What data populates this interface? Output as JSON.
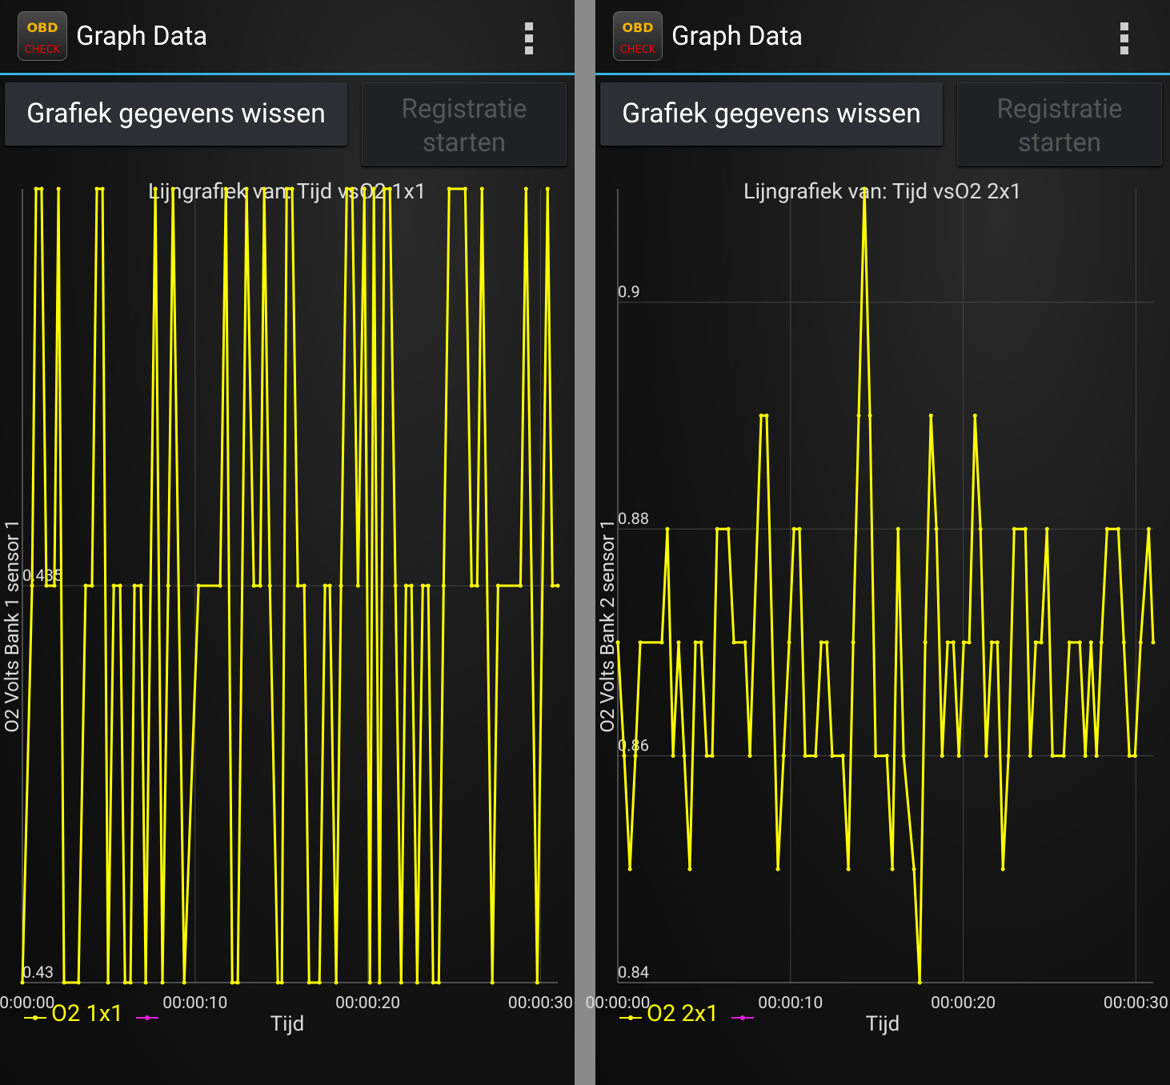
{
  "screens": [
    {
      "icon_top": "OBD",
      "icon_bottom": "CHECK",
      "title": "Graph Data",
      "buttons": [
        "Grafiek gegevens wissen",
        "Registratie starten"
      ]
    },
    {
      "icon_top": "OBD",
      "icon_bottom": "CHECK",
      "title": "Graph Data",
      "buttons": [
        "Grafiek gegevens wissen",
        "Registratie starten"
      ]
    }
  ],
  "chart_data": [
    {
      "type": "line",
      "title": "Lijngrafiek van: Tijd vsO2 1x1",
      "x_label": "Tijd",
      "y_label": "O2 Volts Bank 1 sensor 1",
      "x": [
        0,
        0.56,
        0.79,
        1.11,
        1.39,
        1.85,
        2.09,
        2.41,
        3.25,
        3.66,
        4.03,
        4.31,
        4.64,
        4.96,
        5.29,
        5.66,
        5.94,
        6.26,
        6.49,
        6.86,
        7.14,
        7.7,
        8.11,
        8.44,
        8.72,
        9.37,
        10.2,
        11.45,
        11.78,
        12.15,
        12.47,
        12.98,
        13.4,
        13.77,
        14.0,
        14.33,
        14.79,
        15.02,
        15.3,
        15.62,
        15.95,
        16.32,
        16.6,
        17.2,
        17.52,
        17.8,
        18.17,
        18.45,
        18.78,
        19.1,
        19.43,
        19.8,
        20.12,
        20.35,
        20.68,
        20.95,
        21.28,
        21.6,
        21.93,
        22.21,
        22.53,
        22.86,
        23.18,
        23.5,
        23.78,
        24.11,
        24.39,
        24.71,
        25.64,
        26.01,
        26.33,
        26.61,
        27.21,
        27.54,
        28.84,
        29.16,
        29.81,
        30.41,
        30.69,
        31.0
      ],
      "series": [
        {
          "name": "O2 1x1",
          "color": "#ffff00",
          "values": [
            0.43,
            0.435,
            0.44,
            0.44,
            0.435,
            0.435,
            0.44,
            0.43,
            0.43,
            0.435,
            0.435,
            0.44,
            0.44,
            0.43,
            0.435,
            0.435,
            0.43,
            0.43,
            0.435,
            0.435,
            0.43,
            0.44,
            0.43,
            0.435,
            0.44,
            0.43,
            0.435,
            0.435,
            0.44,
            0.43,
            0.43,
            0.44,
            0.435,
            0.435,
            0.44,
            0.435,
            0.43,
            0.43,
            0.44,
            0.44,
            0.435,
            0.435,
            0.43,
            0.43,
            0.435,
            0.435,
            0.43,
            0.435,
            0.44,
            0.44,
            0.435,
            0.44,
            0.43,
            0.44,
            0.43,
            0.44,
            0.44,
            0.435,
            0.43,
            0.435,
            0.435,
            0.43,
            0.435,
            0.435,
            0.43,
            0.43,
            0.435,
            0.44,
            0.44,
            0.435,
            0.435,
            0.44,
            0.43,
            0.435,
            0.435,
            0.44,
            0.43,
            0.44,
            0.435,
            0.435
          ]
        }
      ],
      "xlim": [
        0,
        31
      ],
      "xticks": [
        {
          "value": 0,
          "label": "00:00:00"
        },
        {
          "value": 10,
          "label": "00:00:10"
        },
        {
          "value": 20,
          "label": "00:00:20"
        },
        {
          "value": 30,
          "label": "00:00:30"
        }
      ],
      "ylim": [
        0.43,
        0.44
      ],
      "yticks": [
        0.43,
        0.435
      ],
      "grid": true
    },
    {
      "type": "line",
      "title": "Lijngrafiek van: Tijd vsO2 2x1",
      "x_label": "Tijd",
      "y_label": "O2 Volts Bank 2 sensor 1",
      "x": [
        0,
        0.37,
        0.7,
        1.02,
        1.3,
        2.55,
        2.87,
        3.2,
        3.52,
        3.85,
        4.17,
        4.5,
        4.82,
        5.15,
        5.47,
        5.75,
        6.4,
        6.72,
        7.37,
        7.65,
        8.3,
        8.62,
        9.27,
        9.6,
        9.92,
        10.2,
        10.52,
        10.85,
        11.45,
        11.78,
        12.1,
        12.42,
        13.03,
        13.35,
        13.63,
        13.95,
        14.28,
        14.6,
        14.93,
        15.58,
        15.9,
        16.23,
        16.55,
        17.15,
        17.48,
        17.8,
        18.13,
        18.45,
        18.78,
        19.1,
        19.43,
        19.75,
        20.03,
        20.35,
        20.68,
        21.0,
        21.33,
        21.65,
        21.98,
        22.3,
        22.62,
        22.95,
        23.6,
        23.88,
        24.2,
        24.52,
        24.85,
        25.17,
        25.82,
        26.15,
        26.75,
        27.07,
        27.4,
        27.72,
        28.0,
        28.33,
        28.98,
        29.3,
        29.62,
        29.95,
        30.27,
        30.74,
        31.0
      ],
      "series": [
        {
          "name": "O2 2x1",
          "color": "#ffff00",
          "values": [
            0.87,
            0.86,
            0.85,
            0.86,
            0.87,
            0.87,
            0.88,
            0.86,
            0.87,
            0.86,
            0.85,
            0.87,
            0.87,
            0.86,
            0.86,
            0.88,
            0.88,
            0.87,
            0.87,
            0.86,
            0.89,
            0.89,
            0.85,
            0.86,
            0.87,
            0.88,
            0.88,
            0.86,
            0.86,
            0.87,
            0.87,
            0.86,
            0.86,
            0.85,
            0.87,
            0.89,
            0.91,
            0.89,
            0.86,
            0.86,
            0.85,
            0.88,
            0.86,
            0.85,
            0.84,
            0.87,
            0.89,
            0.88,
            0.86,
            0.87,
            0.87,
            0.86,
            0.87,
            0.87,
            0.89,
            0.88,
            0.86,
            0.87,
            0.87,
            0.85,
            0.86,
            0.88,
            0.88,
            0.86,
            0.87,
            0.87,
            0.88,
            0.86,
            0.86,
            0.87,
            0.87,
            0.86,
            0.87,
            0.86,
            0.87,
            0.88,
            0.88,
            0.87,
            0.86,
            0.86,
            0.87,
            0.88,
            0.87
          ]
        }
      ],
      "xlim": [
        0,
        31
      ],
      "xticks": [
        {
          "value": 0,
          "label": "00:00:00"
        },
        {
          "value": 10,
          "label": "00:00:10"
        },
        {
          "value": 20,
          "label": "00:00:20"
        },
        {
          "value": 30,
          "label": "00:00:30"
        }
      ],
      "ylim": [
        0.84,
        0.91
      ],
      "yticks": [
        0.84,
        0.86,
        0.88,
        0.9
      ],
      "grid": true
    }
  ]
}
